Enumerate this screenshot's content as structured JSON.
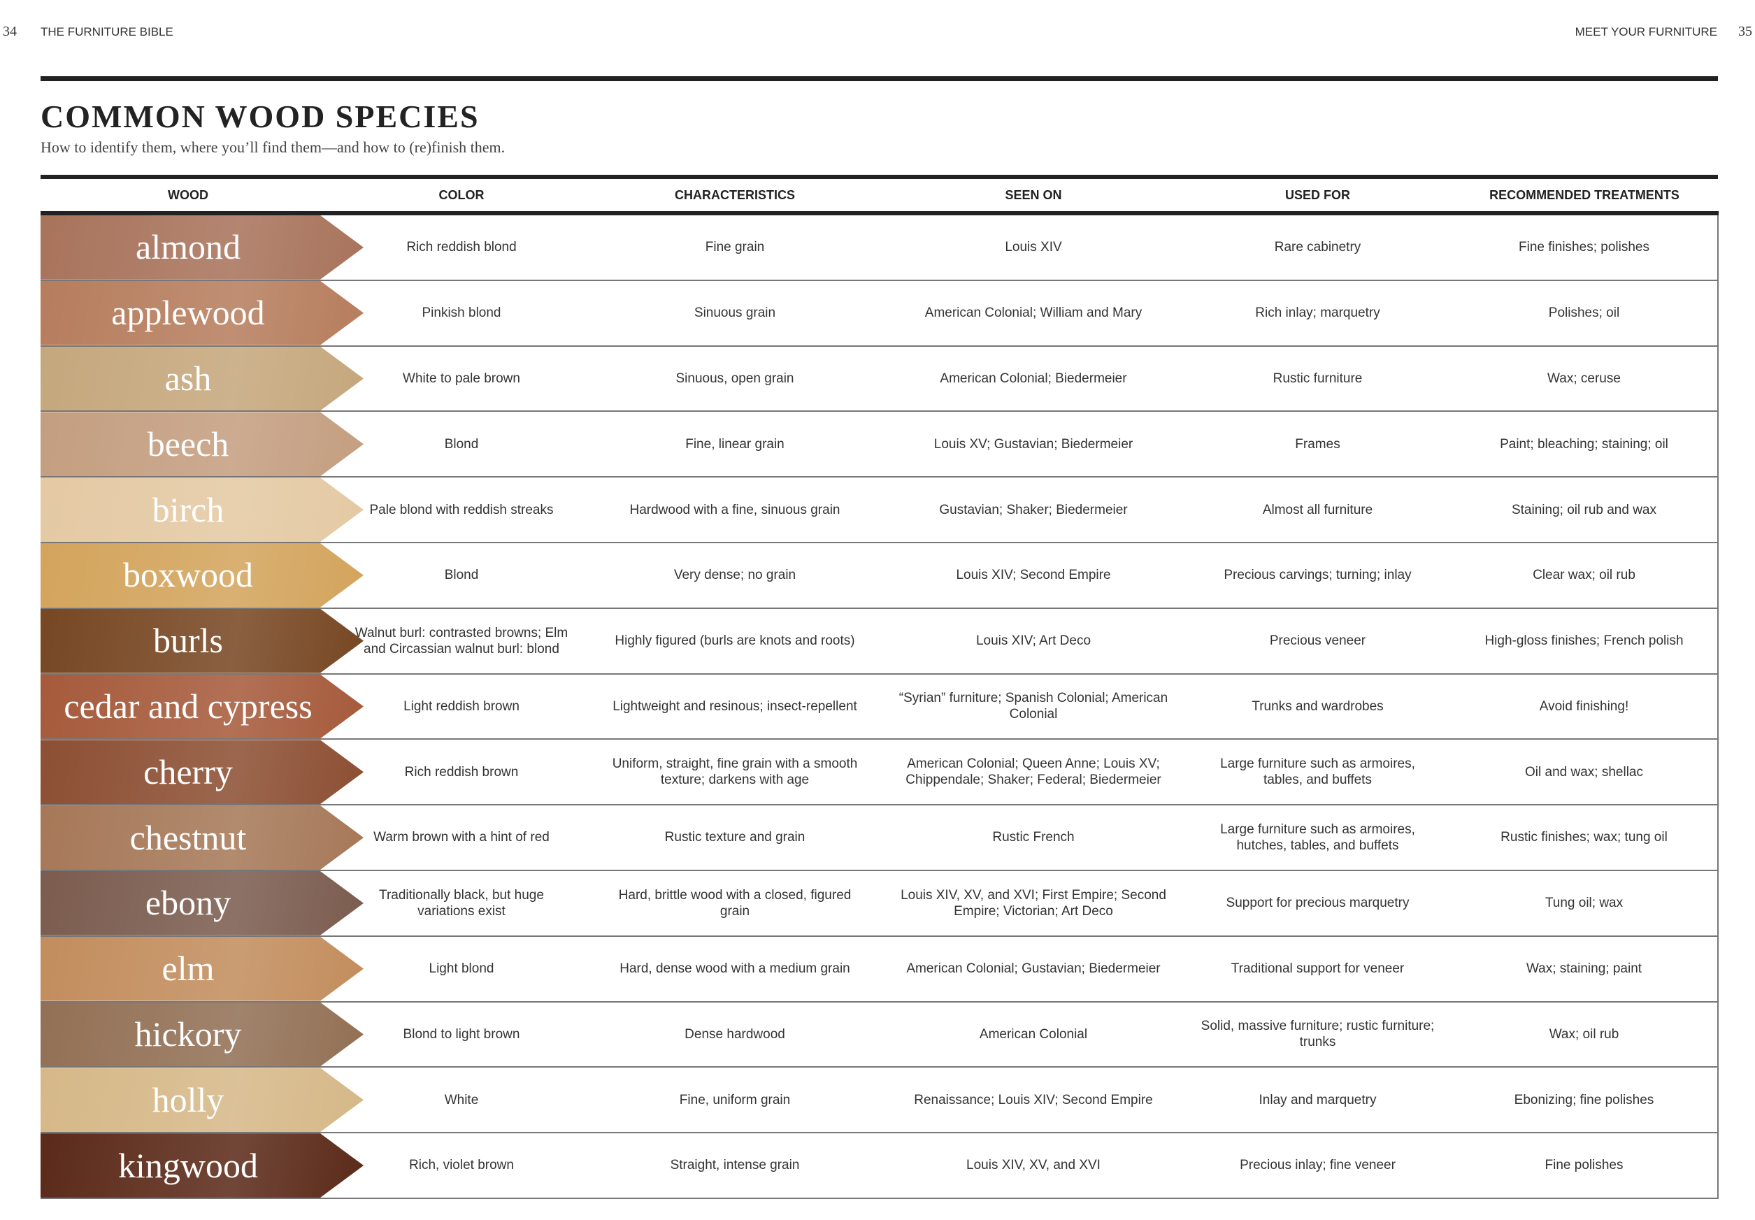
{
  "header": {
    "left_page": "34",
    "left_title": "THE FURNITURE BIBLE",
    "right_title": "MEET YOUR FURNITURE",
    "right_page": "35"
  },
  "title": "COMMON WOOD SPECIES",
  "subtitle": "How to identify them, where you’ll find them—and how to (re)finish them.",
  "table": {
    "columns": [
      "WOOD",
      "COLOR",
      "CHARACTERISTICS",
      "SEEN ON",
      "USED FOR",
      "RECOMMENDED TREATMENTS"
    ],
    "rows": [
      [
        "almond",
        "Rich reddish blond",
        "Fine grain",
        "Louis XIV",
        "Rare cabinetry",
        "Fine finishes; polishes"
      ],
      [
        "applewood",
        "Pinkish blond",
        "Sinuous grain",
        "American Colonial; William and Mary",
        "Rich inlay; marquetry",
        "Polishes; oil"
      ],
      [
        "ash",
        "White to pale brown",
        "Sinuous, open grain",
        "American Colonial; Biedermeier",
        "Rustic furniture",
        "Wax; ceruse"
      ],
      [
        "beech",
        "Blond",
        "Fine, linear grain",
        "Louis XV; Gustavian; Biedermeier",
        "Frames",
        "Paint; bleaching; staining; oil"
      ],
      [
        "birch",
        "Pale blond with reddish streaks",
        "Hardwood with a fine, sinuous grain",
        "Gustavian; Shaker; Biedermeier",
        "Almost all furniture",
        "Staining; oil rub and wax"
      ],
      [
        "boxwood",
        "Blond",
        "Very dense; no grain",
        "Louis XIV; Second Empire",
        "Precious carvings; turning; inlay",
        "Clear wax; oil rub"
      ],
      [
        "burls",
        "Walnut burl: contrasted browns; Elm and Circassian walnut burl: blond",
        "Highly figured (burls are knots and roots)",
        "Louis XIV; Art Deco",
        "Precious veneer",
        "High-gloss finishes; French polish"
      ],
      [
        "cedar and cypress",
        "Light reddish brown",
        "Lightweight and resinous; insect-repellent",
        "“Syrian” furniture; Spanish Colonial; American Colonial",
        "Trunks and wardrobes",
        "Avoid finishing!"
      ],
      [
        "cherry",
        "Rich reddish brown",
        "Uniform, straight, fine grain with a smooth texture; darkens with age",
        "American Colonial; Queen Anne; Louis XV; Chippendale; Shaker; Federal; Biedermeier",
        "Large furniture such as armoires, tables, and buffets",
        "Oil and wax; shellac"
      ],
      [
        "chestnut",
        "Warm brown with a hint of red",
        "Rustic texture and grain",
        "Rustic French",
        "Large furniture such as armoires, hutches, tables, and buffets",
        "Rustic finishes; wax; tung oil"
      ],
      [
        "ebony",
        "Traditionally black, but huge variations exist",
        "Hard, brittle wood with a closed, figured grain",
        "Louis XIV, XV, and XVI; First Empire; Second Empire; Victorian; Art Deco",
        "Support for precious marquetry",
        "Tung oil; wax"
      ],
      [
        "elm",
        "Light blond",
        "Hard, dense wood with a medium grain",
        "American Colonial; Gustavian; Biedermeier",
        "Traditional support for veneer",
        "Wax; staining; paint"
      ],
      [
        "hickory",
        "Blond to light brown",
        "Dense hardwood",
        "American Colonial",
        "Solid, massive furniture; rustic furniture; trunks",
        "Wax; oil rub"
      ],
      [
        "holly",
        "White",
        "Fine, uniform grain",
        "Renaissance; Louis XIV; Second Empire",
        "Inlay and marquetry",
        "Ebonizing; fine polishes"
      ],
      [
        "kingwood",
        "Rich, violet brown",
        "Straight, intense grain",
        "Louis XIV, XV, and XVI",
        "Precious inlay; fine veneer",
        "Fine polishes"
      ]
    ]
  }
}
